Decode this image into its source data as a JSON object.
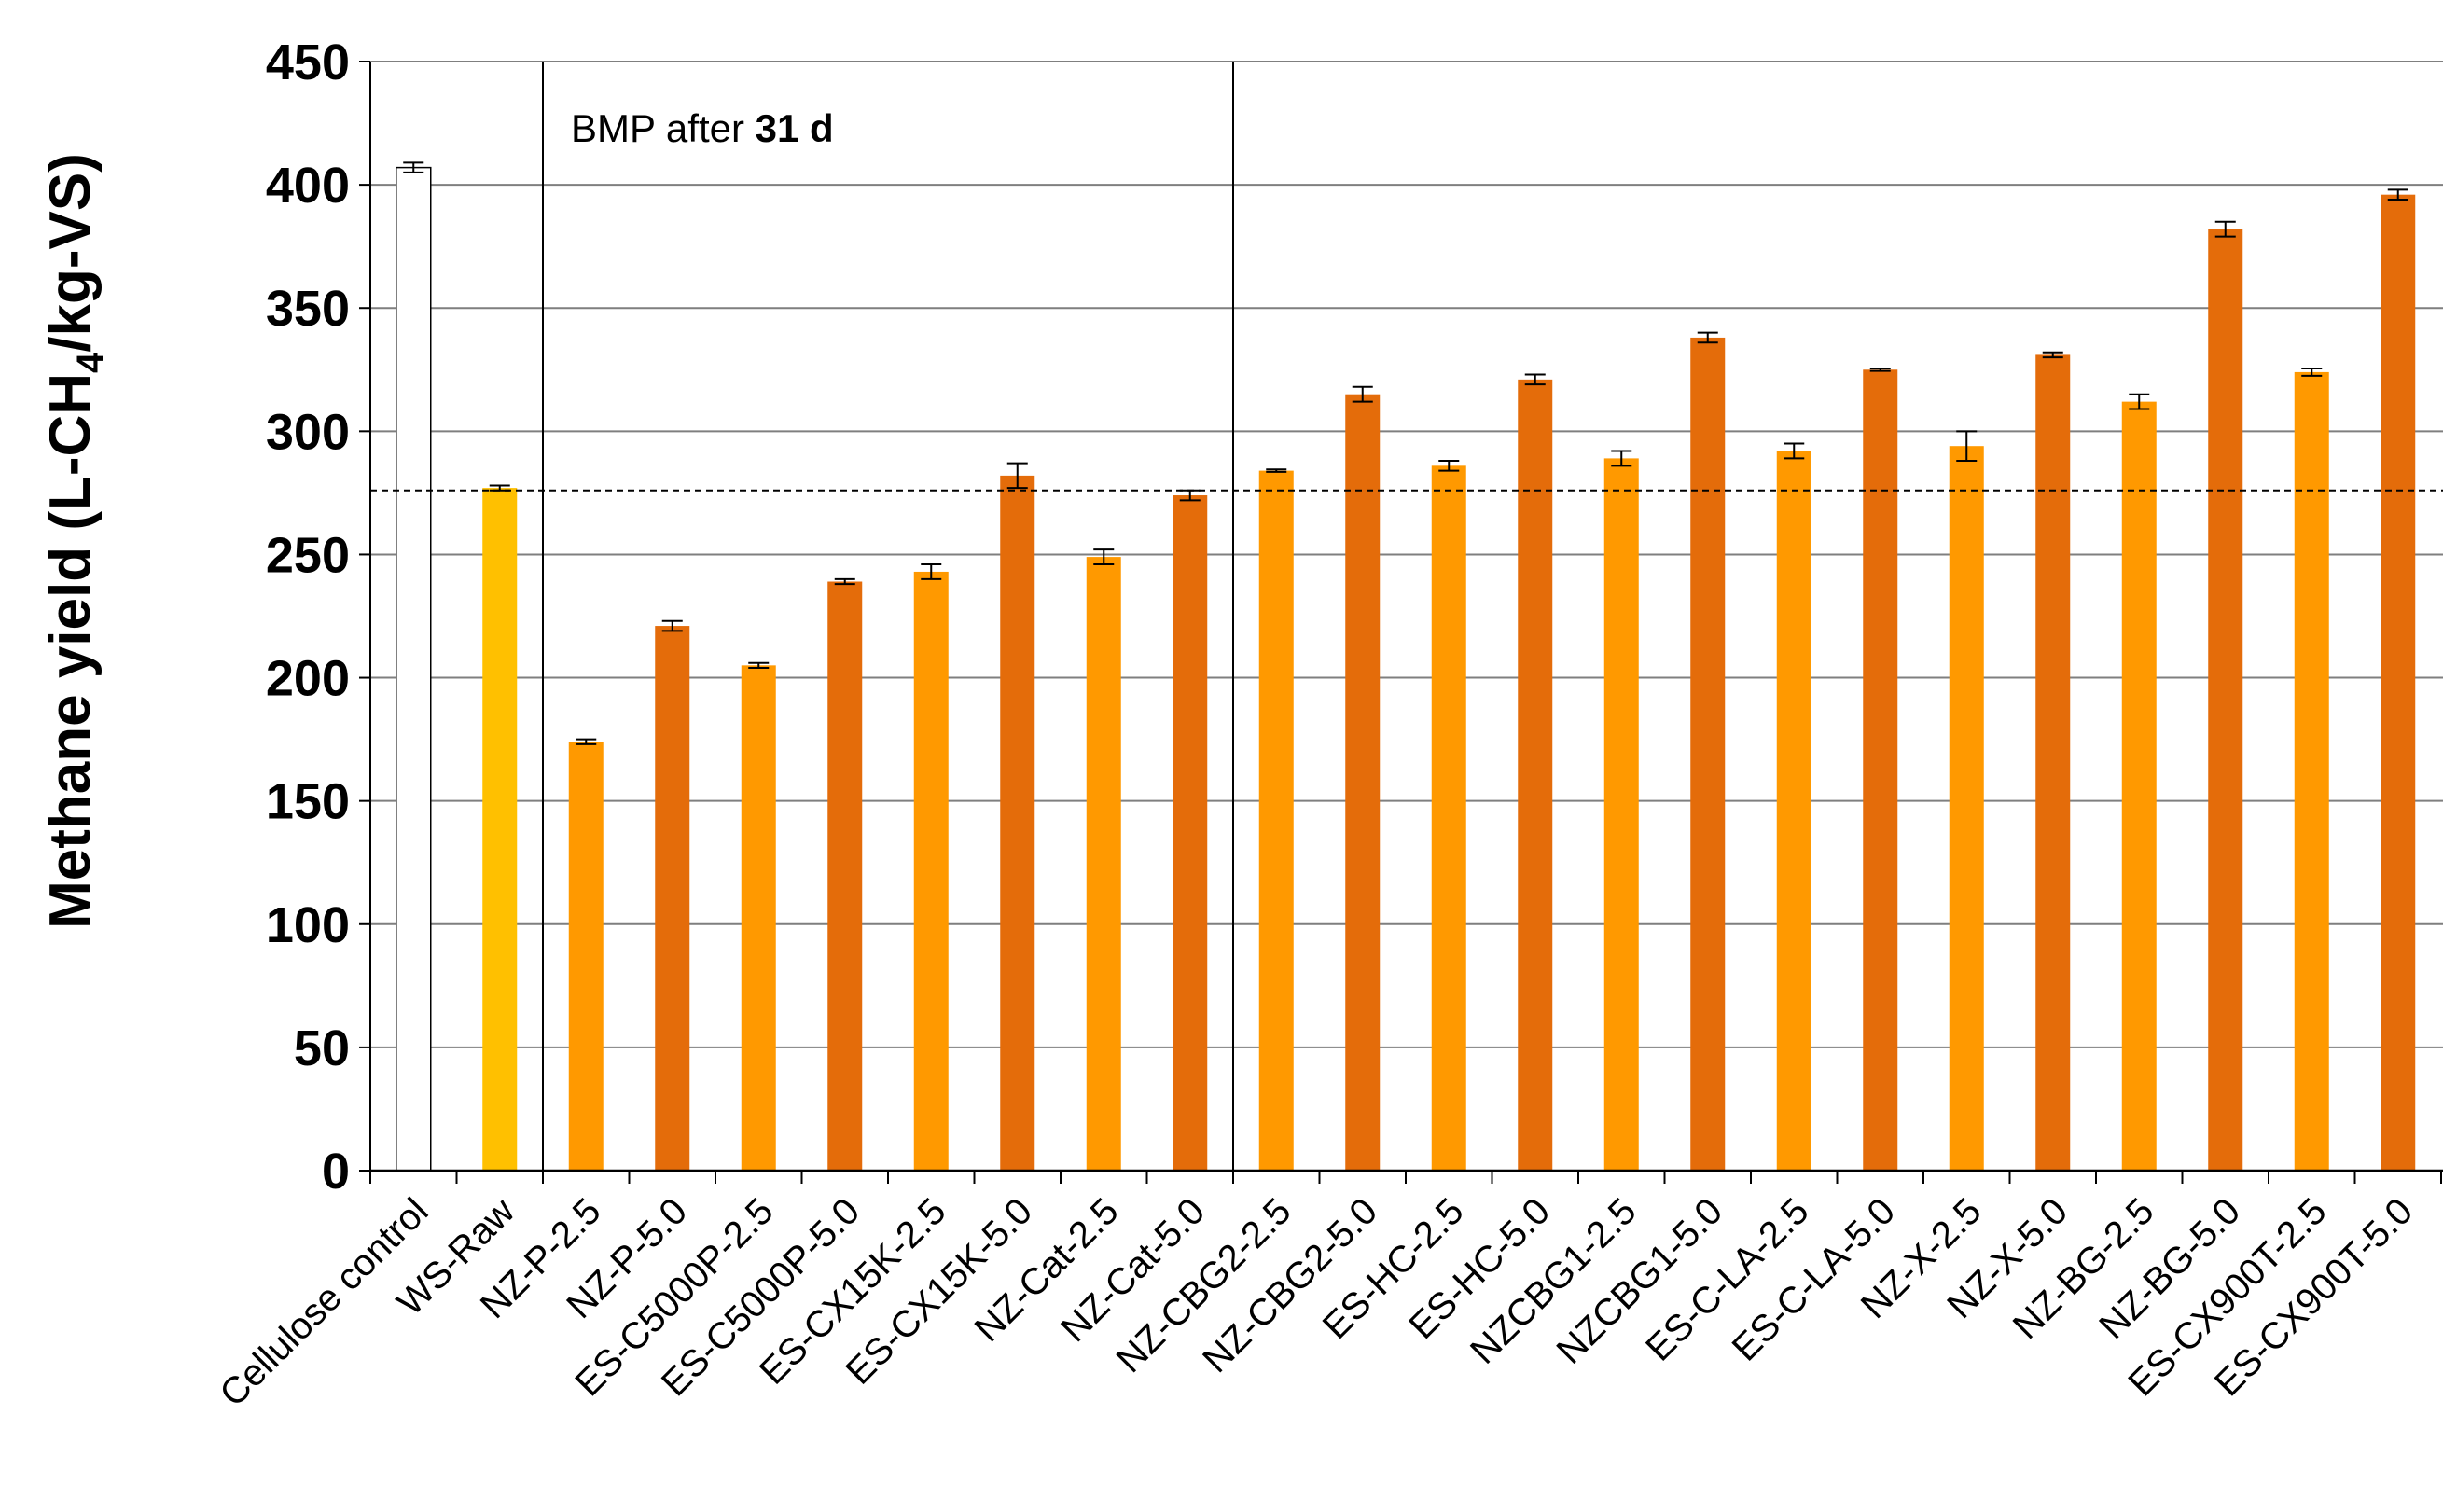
{
  "chart_data": {
    "type": "bar",
    "title": "",
    "ylabel": {
      "prefix": "Methane yield (L-CH",
      "sub": "4",
      "suffix": "/kg-VS)"
    },
    "xlabel": "",
    "ylim": [
      0,
      450
    ],
    "yticks": [
      0,
      50,
      100,
      150,
      200,
      250,
      300,
      350,
      400,
      450
    ],
    "grid": true,
    "reference_line": 276,
    "annotation": {
      "text": "BMP after ",
      "bold": "31 d"
    },
    "categories": [
      "Cellulose control",
      "WS-Raw",
      "NZ-P-2.5",
      "NZ-P-5.0",
      "ES-C5000P-2.5",
      "ES-C5000P-5.0",
      "ES-CX15K-2.5",
      "ES-CX15K-5.0",
      "NZ-Cat-2.5",
      "NZ-Cat-5.0",
      "NZ-CBG2-2.5",
      "NZ-CBG2-5.0",
      "ES-HC-2.5",
      "ES-HC-5.0",
      "NZCBG1-2.5",
      "NZCBG1-5.0",
      "ES-C-LA-2.5",
      "ES-C-LA-5.0",
      "NZ-X-2.5",
      "NZ-X-5.0",
      "NZ-BG-2.5",
      "NZ-BG-5.0",
      "ES-CX900T-2.5",
      "ES-CX900T-5.0"
    ],
    "values": [
      407,
      277,
      174,
      221,
      205,
      239,
      243,
      282,
      249,
      274,
      284,
      315,
      286,
      321,
      289,
      338,
      292,
      325,
      294,
      331,
      312,
      382,
      324,
      396
    ],
    "errors": [
      2,
      1,
      1,
      2,
      1,
      1,
      3,
      5,
      3,
      2,
      0.5,
      3,
      2,
      2,
      3,
      2,
      3,
      0.5,
      6,
      1,
      3,
      3,
      1.5,
      2
    ],
    "colors": [
      "#ffffff",
      "#ffc000",
      "#ff9900",
      "#e46c0a",
      "#ff9900",
      "#e46c0a",
      "#ff9900",
      "#e46c0a",
      "#ff9900",
      "#e46c0a",
      "#ff9900",
      "#e46c0a",
      "#ff9900",
      "#e46c0a",
      "#ff9900",
      "#e46c0a",
      "#ff9900",
      "#e46c0a",
      "#ff9900",
      "#e46c0a",
      "#ff9900",
      "#e46c0a",
      "#ff9900",
      "#e46c0a"
    ],
    "group_separators_after_index": [
      1,
      9
    ]
  }
}
